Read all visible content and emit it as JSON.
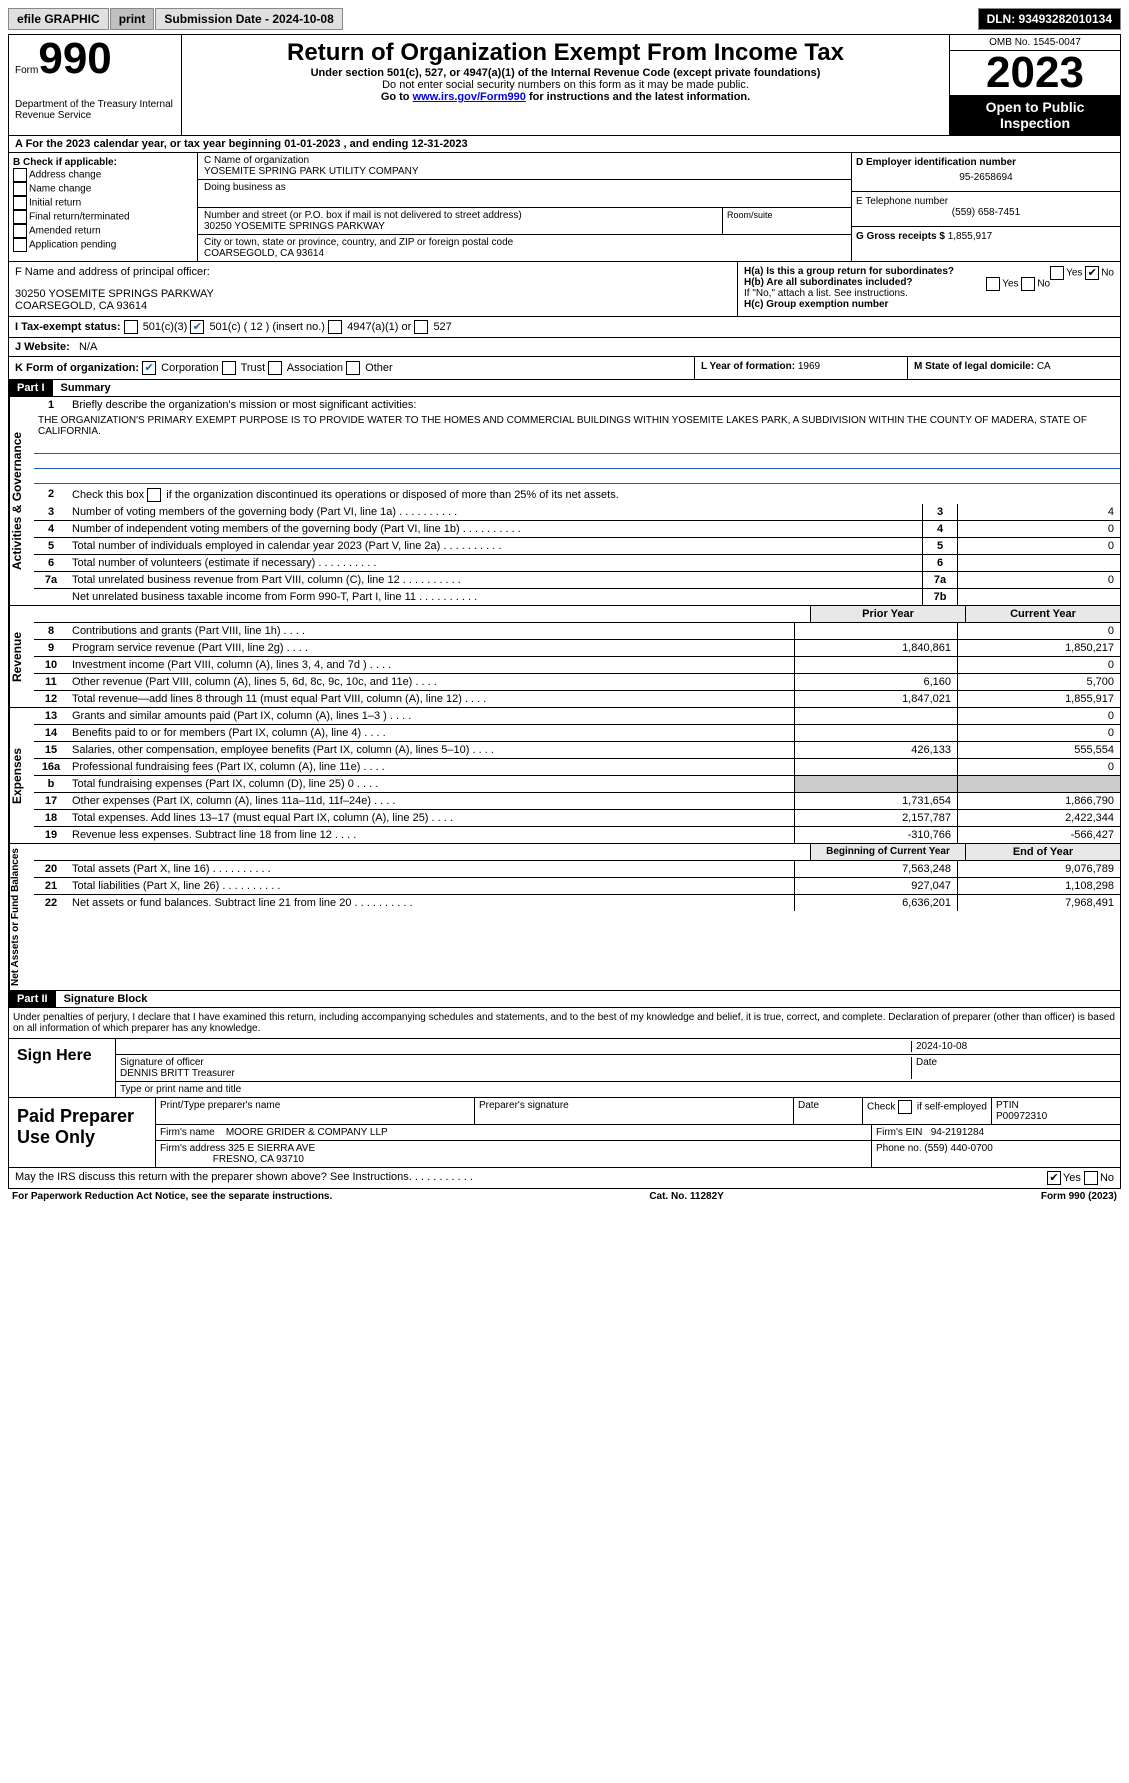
{
  "topbar": {
    "efile": "efile GRAPHIC",
    "print": "print",
    "submission_label": "Submission Date - 2024-10-08",
    "dln": "DLN: 93493282010134"
  },
  "header": {
    "form_word": "Form",
    "form_number": "990",
    "dept": "Department of the Treasury Internal Revenue Service",
    "title": "Return of Organization Exempt From Income Tax",
    "subtitle": "Under section 501(c), 527, or 4947(a)(1) of the Internal Revenue Code (except private foundations)",
    "warning": "Do not enter social security numbers on this form as it may be made public.",
    "goto": "Go to ",
    "goto_link": "www.irs.gov/Form990",
    "goto_after": " for instructions and the latest information.",
    "omb": "OMB No. 1545-0047",
    "year": "2023",
    "open": "Open to Public Inspection"
  },
  "line_a": "A For the 2023 calendar year, or tax year beginning 01-01-2023    , and ending 12-31-2023",
  "section_b": {
    "label": "B Check if applicable:",
    "items": [
      "Address change",
      "Name change",
      "Initial return",
      "Final return/terminated",
      "Amended return",
      "Application pending"
    ]
  },
  "section_c": {
    "name_label": "C Name of organization",
    "name": "YOSEMITE SPRING PARK UTILITY COMPANY",
    "dba_label": "Doing business as",
    "addr_label": "Number and street (or P.O. box if mail is not delivered to street address)",
    "addr": "30250 YOSEMITE SPRINGS PARKWAY",
    "room_label": "Room/suite",
    "city_label": "City or town, state or province, country, and ZIP or foreign postal code",
    "city": "COARSEGOLD, CA  93614"
  },
  "section_d": {
    "label": "D Employer identification number",
    "ein": "95-2658694",
    "phone_label": "E Telephone number",
    "phone": "(559) 658-7451",
    "gross_label": "G Gross receipts $ ",
    "gross": "1,855,917"
  },
  "section_f": {
    "label": "F  Name and address of principal officer:",
    "addr1": "30250 YOSEMITE SPRINGS PARKWAY",
    "addr2": "COARSEGOLD, CA  93614"
  },
  "section_h": {
    "a_label": "H(a)  Is this a group return for subordinates?",
    "b_label": "H(b)  Are all subordinates included?",
    "b_note": "If \"No,\" attach a list. See instructions.",
    "c_label": "H(c)  Group exemption number"
  },
  "section_i": {
    "label": "I     Tax-exempt status:",
    "opts": [
      "501(c)(3)",
      "501(c) ( 12 ) (insert no.)",
      "4947(a)(1) or",
      "527"
    ]
  },
  "section_j": {
    "label": "J     Website:",
    "val": "N/A"
  },
  "section_k": {
    "label": "K Form of organization:",
    "opts": [
      "Corporation",
      "Trust",
      "Association",
      "Other"
    ]
  },
  "section_l": {
    "label": "L Year of formation: ",
    "val": "1969"
  },
  "section_m": {
    "label": "M State of legal domicile: ",
    "val": "CA"
  },
  "part1": {
    "header": "Part I",
    "title": "Summary",
    "side_ag": "Activities & Governance",
    "side_rev": "Revenue",
    "side_exp": "Expenses",
    "side_net": "Net Assets or Fund Balances",
    "line1_label": "Briefly describe the organization's mission or most significant activities:",
    "mission": "THE ORGANIZATION'S PRIMARY EXEMPT PURPOSE IS TO PROVIDE WATER TO THE HOMES AND COMMERCIAL BUILDINGS WITHIN YOSEMITE LAKES PARK, A SUBDIVISION WITHIN THE COUNTY OF MADERA, STATE OF CALIFORNIA.",
    "line2": "Check this box      if the organization discontinued its operations or disposed of more than 25% of its net assets.",
    "lines_ag": [
      {
        "n": "3",
        "t": "Number of voting members of the governing body (Part VI, line 1a)",
        "box": "3",
        "v": "4"
      },
      {
        "n": "4",
        "t": "Number of independent voting members of the governing body (Part VI, line 1b)",
        "box": "4",
        "v": "0"
      },
      {
        "n": "5",
        "t": "Total number of individuals employed in calendar year 2023 (Part V, line 2a)",
        "box": "5",
        "v": "0"
      },
      {
        "n": "6",
        "t": "Total number of volunteers (estimate if necessary)",
        "box": "6",
        "v": ""
      },
      {
        "n": "7a",
        "t": "Total unrelated business revenue from Part VIII, column (C), line 12",
        "box": "7a",
        "v": "0"
      },
      {
        "n": "",
        "t": "Net unrelated business taxable income from Form 990-T, Part I, line 11",
        "box": "7b",
        "v": ""
      }
    ],
    "prior_hdr": "Prior Year",
    "current_hdr": "Current Year",
    "lines_rev": [
      {
        "n": "8",
        "t": "Contributions and grants (Part VIII, line 1h)",
        "p": "",
        "c": "0"
      },
      {
        "n": "9",
        "t": "Program service revenue (Part VIII, line 2g)",
        "p": "1,840,861",
        "c": "1,850,217"
      },
      {
        "n": "10",
        "t": "Investment income (Part VIII, column (A), lines 3, 4, and 7d )",
        "p": "",
        "c": "0"
      },
      {
        "n": "11",
        "t": "Other revenue (Part VIII, column (A), lines 5, 6d, 8c, 9c, 10c, and 11e)",
        "p": "6,160",
        "c": "5,700"
      },
      {
        "n": "12",
        "t": "Total revenue—add lines 8 through 11 (must equal Part VIII, column (A), line 12)",
        "p": "1,847,021",
        "c": "1,855,917"
      }
    ],
    "lines_exp": [
      {
        "n": "13",
        "t": "Grants and similar amounts paid (Part IX, column (A), lines 1–3 )",
        "p": "",
        "c": "0"
      },
      {
        "n": "14",
        "t": "Benefits paid to or for members (Part IX, column (A), line 4)",
        "p": "",
        "c": "0"
      },
      {
        "n": "15",
        "t": "Salaries, other compensation, employee benefits (Part IX, column (A), lines 5–10)",
        "p": "426,133",
        "c": "555,554"
      },
      {
        "n": "16a",
        "t": "Professional fundraising fees (Part IX, column (A), line 11e)",
        "p": "",
        "c": "0"
      },
      {
        "n": "b",
        "t": "Total fundraising expenses (Part IX, column (D), line 25) 0",
        "p": "grey",
        "c": "grey"
      },
      {
        "n": "17",
        "t": "Other expenses (Part IX, column (A), lines 11a–11d, 11f–24e)",
        "p": "1,731,654",
        "c": "1,866,790"
      },
      {
        "n": "18",
        "t": "Total expenses. Add lines 13–17 (must equal Part IX, column (A), line 25)",
        "p": "2,157,787",
        "c": "2,422,344"
      },
      {
        "n": "19",
        "t": "Revenue less expenses. Subtract line 18 from line 12",
        "p": "-310,766",
        "c": "-566,427"
      }
    ],
    "begin_hdr": "Beginning of Current Year",
    "end_hdr": "End of Year",
    "lines_net": [
      {
        "n": "20",
        "t": "Total assets (Part X, line 16)",
        "p": "7,563,248",
        "c": "9,076,789"
      },
      {
        "n": "21",
        "t": "Total liabilities (Part X, line 26)",
        "p": "927,047",
        "c": "1,108,298"
      },
      {
        "n": "22",
        "t": "Net assets or fund balances. Subtract line 21 from line 20",
        "p": "6,636,201",
        "c": "7,968,491"
      }
    ]
  },
  "part2": {
    "header": "Part II",
    "title": "Signature Block",
    "declaration": "Under penalties of perjury, I declare that I have examined this return, including accompanying schedules and statements, and to the best of my knowledge and belief, it is true, correct, and complete. Declaration of preparer (other than officer) is based on all information of which preparer has any knowledge.",
    "sign_here": "Sign Here",
    "sig_date": "2024-10-08",
    "sig_label": "Signature of officer",
    "officer": "DENNIS BRITT Treasurer",
    "date_label": "Date",
    "type_label": "Type or print name and title",
    "paid": "Paid Preparer Use Only",
    "print_label": "Print/Type preparer's name",
    "prep_sig_label": "Preparer's signature",
    "check_label": "Check       if self-employed",
    "ptin_label": "PTIN",
    "ptin": "P00972310",
    "firm_name_label": "Firm's name",
    "firm_name": "MOORE GRIDER & COMPANY LLP",
    "firm_ein_label": "Firm's EIN",
    "firm_ein": "94-2191284",
    "firm_addr_label": "Firm's address",
    "firm_addr1": "325 E SIERRA AVE",
    "firm_addr2": "FRESNO, CA  93710",
    "phone_label": "Phone no.",
    "phone": "(559) 440-0700",
    "discuss": "May the IRS discuss this return with the preparer shown above? See Instructions."
  },
  "footer": {
    "left": "For Paperwork Reduction Act Notice, see the separate instructions.",
    "mid": "Cat. No. 11282Y",
    "right": "Form 990 (2023)"
  }
}
